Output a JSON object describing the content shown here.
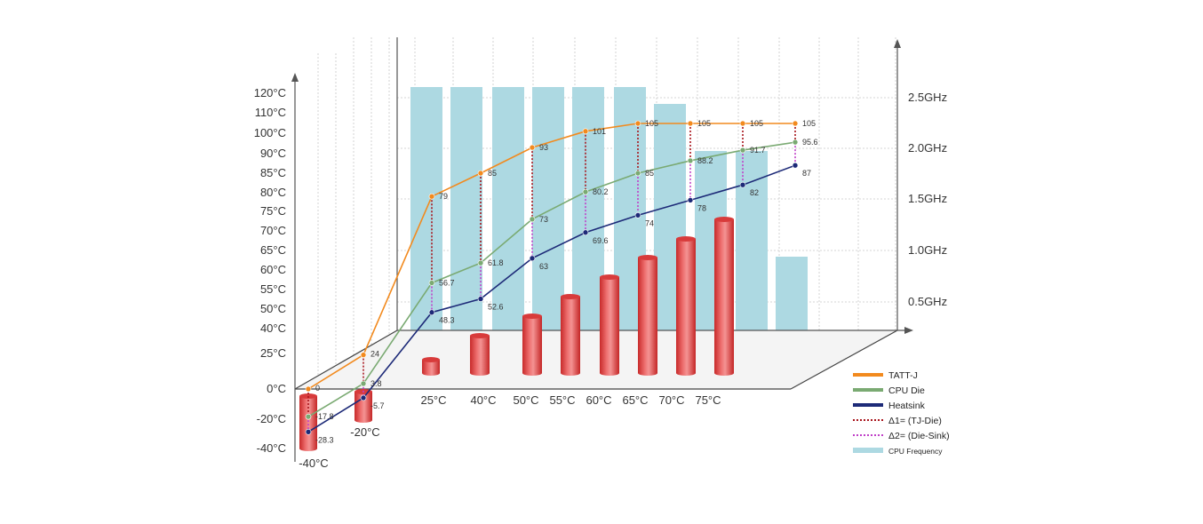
{
  "chart_data": {
    "type": "line",
    "title": "",
    "left_axis_ticks": [
      "120°C",
      "110°C",
      "100°C",
      "90°C",
      "85°C",
      "80°C",
      "75°C",
      "70°C",
      "65°C",
      "60°C",
      "55°C",
      "50°C",
      "40°C",
      "25°C",
      "0°C",
      "-20°C",
      "-40°C"
    ],
    "right_axis_ticks": [
      "2.5GHz",
      "2.0GHz",
      "1.5GHz",
      "1.0GHz",
      "0.5GHz"
    ],
    "front_x_labels": [
      "-40°C",
      "-20°C"
    ],
    "x_labels": [
      "25°C",
      "40°C",
      "50°C",
      "55°C",
      "60°C",
      "65°C",
      "70°C",
      "75°C"
    ],
    "series": [
      {
        "name": "TATT-J",
        "color": "#f28a1e",
        "values": [
          0,
          24,
          79,
          85,
          93,
          101,
          105,
          105,
          105,
          105
        ]
      },
      {
        "name": "CPU Die",
        "color": "#7aaa72",
        "values": [
          -17.8,
          3.8,
          56.7,
          61.8,
          73,
          80.2,
          85,
          88.2,
          91.7,
          95.6
        ]
      },
      {
        "name": "Heatsink",
        "color": "#1d2a78",
        "values": [
          -28.3,
          -5.7,
          48.3,
          52.6,
          63,
          69.6,
          74,
          78,
          82,
          87
        ]
      }
    ],
    "delta_lines": [
      {
        "name": "Δ1= (TJ-Die)",
        "color": "#a8141c"
      },
      {
        "name": "Δ2= (Die-Sink)",
        "color": "#c040c8"
      }
    ],
    "cpu_frequency": {
      "name": "CPU Frequency",
      "color": "#add9e2",
      "values_ghz": [
        2.6,
        2.6,
        2.6,
        2.6,
        2.6,
        2.6,
        2.45,
        2.05,
        2.05,
        0.95
      ]
    },
    "ambient_cylinders": {
      "color": "#e44a4a",
      "values": [
        -40,
        -20,
        25,
        40,
        50,
        55,
        60,
        65,
        70,
        75
      ]
    },
    "legend_position": "bottom-right"
  }
}
